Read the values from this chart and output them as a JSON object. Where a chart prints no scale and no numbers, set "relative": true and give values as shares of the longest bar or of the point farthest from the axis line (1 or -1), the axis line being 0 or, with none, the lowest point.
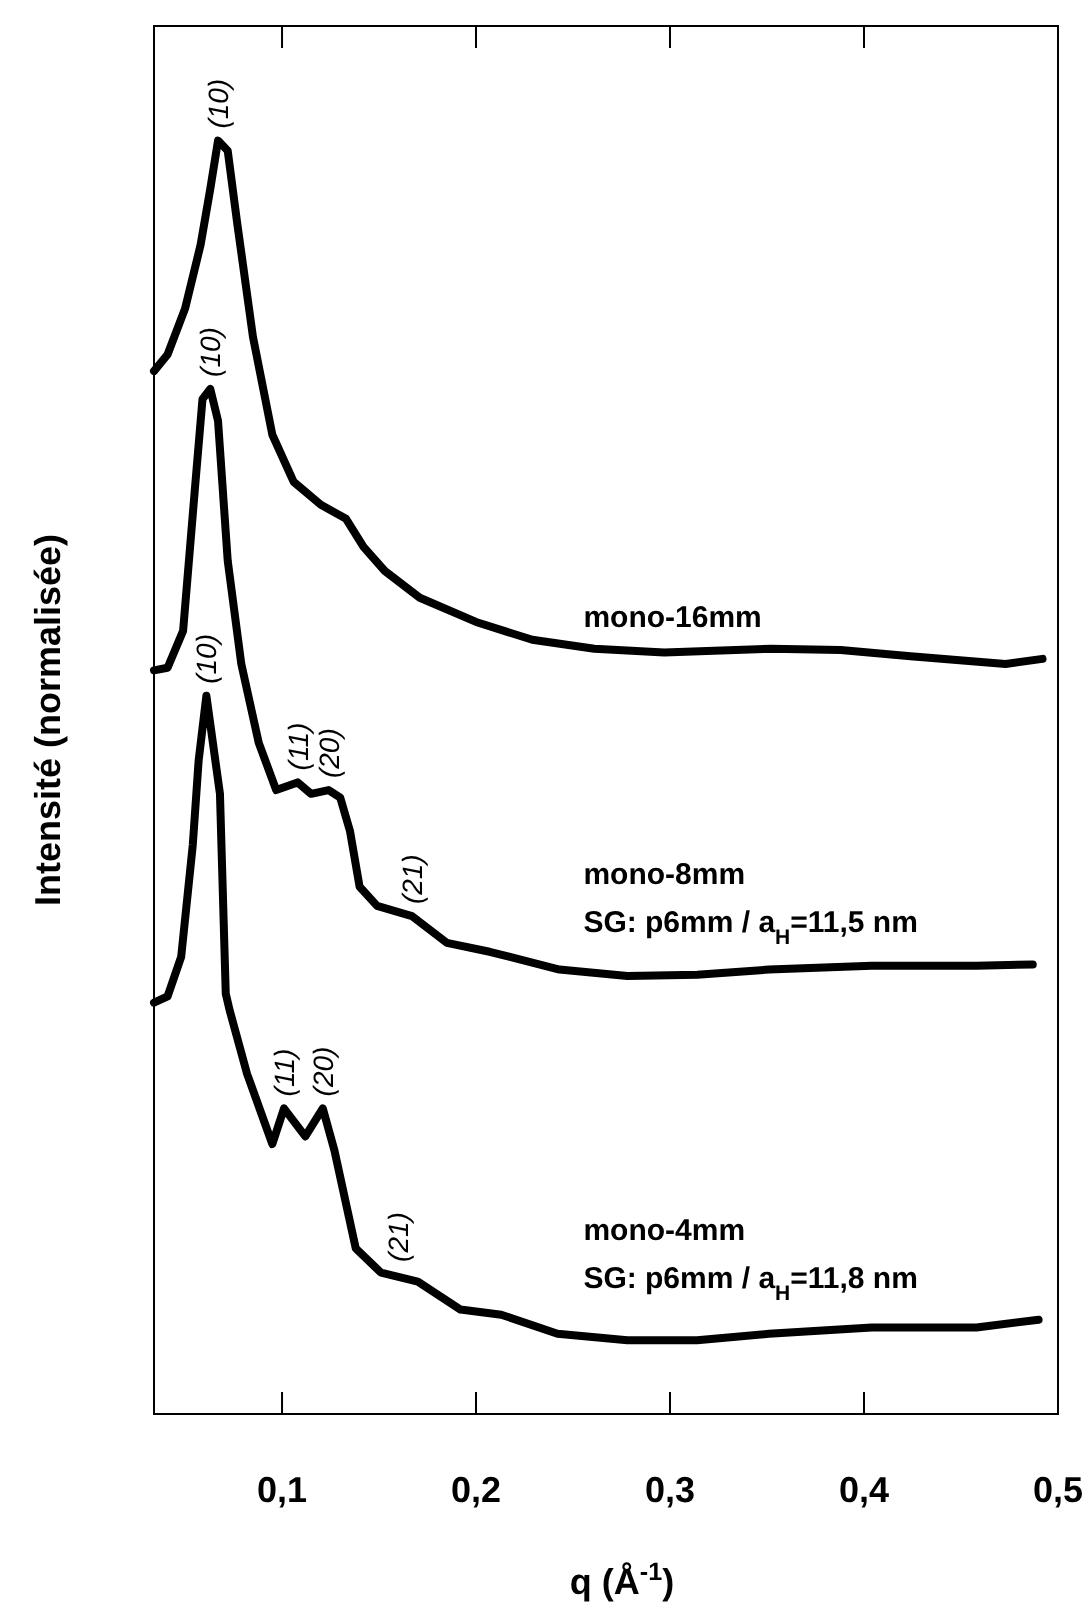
{
  "chart_data": {
    "type": "line",
    "relative": true,
    "xlabel": "q (Å$^{-1}$)",
    "ylabel": "Intensité (normalisée)",
    "xlim": [
      0.034,
      0.5
    ],
    "xticks": [
      {
        "value": 0.1,
        "label": "0,1"
      },
      {
        "value": 0.2,
        "label": "0,2"
      },
      {
        "value": 0.3,
        "label": "0,3"
      },
      {
        "value": 0.4,
        "label": "0,4"
      },
      {
        "value": 0.5,
        "label": "0,5"
      }
    ],
    "series": [
      {
        "name": "mono-16mm",
        "color": "#000000",
        "x": [
          0.034,
          0.041,
          0.05,
          0.058,
          0.063,
          0.067,
          0.072,
          0.077,
          0.085,
          0.095,
          0.106,
          0.12,
          0.133,
          0.142,
          0.153,
          0.171,
          0.2,
          0.229,
          0.261,
          0.297,
          0.352,
          0.388,
          0.424,
          0.473,
          0.492
        ],
        "values": [
          0.819,
          0.832,
          0.868,
          0.918,
          0.962,
          1.0,
          0.992,
          0.934,
          0.846,
          0.769,
          0.732,
          0.714,
          0.703,
          0.681,
          0.662,
          0.641,
          0.622,
          0.608,
          0.601,
          0.598,
          0.601,
          0.6,
          0.595,
          0.589,
          0.593
        ]
      },
      {
        "name": "mono-8mm",
        "color": "#000000",
        "x": [
          0.034,
          0.041,
          0.049,
          0.055,
          0.059,
          0.063,
          0.067,
          0.072,
          0.079,
          0.088,
          0.097,
          0.108,
          0.115,
          0.124,
          0.13,
          0.135,
          0.14,
          0.149,
          0.167,
          0.185,
          0.207,
          0.243,
          0.278,
          0.314,
          0.351,
          0.404,
          0.458,
          0.487
        ],
        "values": [
          0.584,
          0.586,
          0.615,
          0.725,
          0.797,
          0.805,
          0.78,
          0.67,
          0.589,
          0.527,
          0.49,
          0.496,
          0.487,
          0.49,
          0.484,
          0.458,
          0.414,
          0.399,
          0.391,
          0.37,
          0.363,
          0.349,
          0.344,
          0.345,
          0.349,
          0.352,
          0.352,
          0.353
        ]
      },
      {
        "name": "mono-4mm",
        "color": "#000000",
        "x": [
          0.034,
          0.041,
          0.048,
          0.054,
          0.057,
          0.061,
          0.068,
          0.071,
          0.073,
          0.082,
          0.095,
          0.101,
          0.112,
          0.121,
          0.127,
          0.138,
          0.151,
          0.17,
          0.192,
          0.213,
          0.242,
          0.278,
          0.314,
          0.351,
          0.404,
          0.458,
          0.49
        ],
        "values": [
          0.323,
          0.328,
          0.359,
          0.447,
          0.513,
          0.564,
          0.487,
          0.33,
          0.317,
          0.267,
          0.212,
          0.24,
          0.218,
          0.24,
          0.207,
          0.13,
          0.111,
          0.104,
          0.082,
          0.078,
          0.063,
          0.058,
          0.058,
          0.063,
          0.068,
          0.068,
          0.074
        ]
      }
    ],
    "annotations": [
      {
        "text": "(10)",
        "x": 0.067,
        "y": 1.0
      },
      {
        "text": "(10)",
        "x": 0.063,
        "y": 0.805
      },
      {
        "text": "(11)",
        "x": 0.108,
        "y": 0.496
      },
      {
        "text": "(20)",
        "x": 0.124,
        "y": 0.49
      },
      {
        "text": "(21)",
        "x": 0.167,
        "y": 0.391
      },
      {
        "text": "(10)",
        "x": 0.061,
        "y": 0.564
      },
      {
        "text": "(11)",
        "x": 0.101,
        "y": 0.24
      },
      {
        "text": "(20)",
        "x": 0.121,
        "y": 0.24
      },
      {
        "text": "(21)",
        "x": 0.16,
        "y": 0.11
      },
      "SG: p6mm / a$_{H}$=11,5 nm",
      "SG: p6mm / a$_{H}$=11,8 nm"
    ]
  }
}
